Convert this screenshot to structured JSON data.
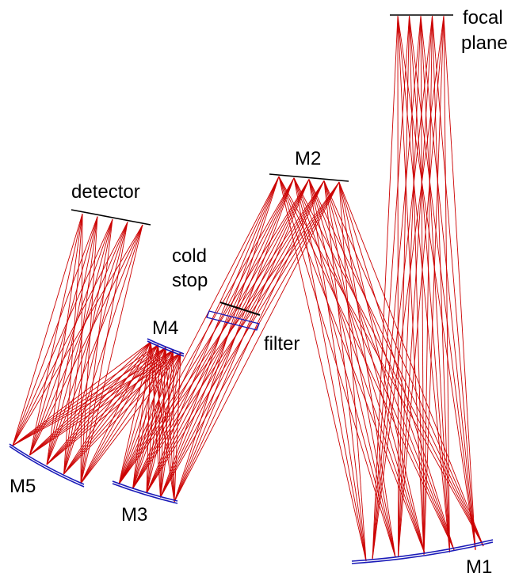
{
  "labels": {
    "focal_plane_line1": "focal",
    "focal_plane_line2": "plane",
    "m1": "M1",
    "m2": "M2",
    "m3": "M3",
    "m4": "M4",
    "m5": "M5",
    "detector": "detector",
    "cold_stop_line1": "cold",
    "cold_stop_line2": "stop",
    "filter": "filter"
  },
  "colors": {
    "rays": "#cc0000",
    "mirrors": "#1a1ab8",
    "planes": "#000000"
  }
}
